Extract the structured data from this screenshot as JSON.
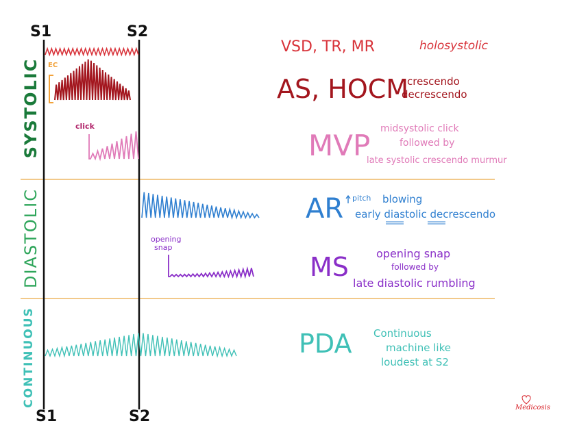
{
  "markers": {
    "s1_top": "S1",
    "s2_top": "S2",
    "s1_bottom": "S1",
    "s2_bottom": "S2"
  },
  "sections": {
    "systolic": "SYSTOLIC",
    "diastolic": "DIASTOLIC",
    "continuous": "CONTINUOUS"
  },
  "annotations": {
    "ec": "EC",
    "click": "click",
    "opening_snap_line1": "opening",
    "opening_snap_line2": "snap"
  },
  "murmurs": [
    {
      "id": "holosystolic",
      "name": "VSD, TR, MR",
      "description": [
        "holosystolic"
      ]
    },
    {
      "id": "crescendo-decrescendo",
      "name": "AS, HOCM",
      "description": [
        "crescendo",
        "decrescendo"
      ]
    },
    {
      "id": "mvp",
      "name": "MVP",
      "description": [
        "midsystolic click",
        "followed by",
        "late systolic crescendo murmur"
      ]
    },
    {
      "id": "ar",
      "name": "AR",
      "pitch": "pitch",
      "description": [
        "blowing",
        "early diastolic decrescendo"
      ]
    },
    {
      "id": "ms",
      "name": "MS",
      "description": [
        "opening snap",
        "followed by",
        "late diastolic rumbling"
      ]
    },
    {
      "id": "pda",
      "name": "PDA",
      "description": [
        "Continuous",
        "machine like",
        "loudest at S2"
      ]
    }
  ],
  "logo": "Medicosis",
  "colors": {
    "holosystolic": "#d8333a",
    "as_hocm": "#a3161e",
    "ec": "#f2a23a",
    "mvp": "#e07ab8",
    "ar": "#2f7fd0",
    "ms": "#8a2fc8",
    "pda": "#3fc0b6",
    "systolic_label": "#1a7a3a",
    "diastolic_label": "#2ea55a",
    "continuous_label": "#3fc0b6",
    "divider": "#f2c98a",
    "axis": "#111111"
  }
}
